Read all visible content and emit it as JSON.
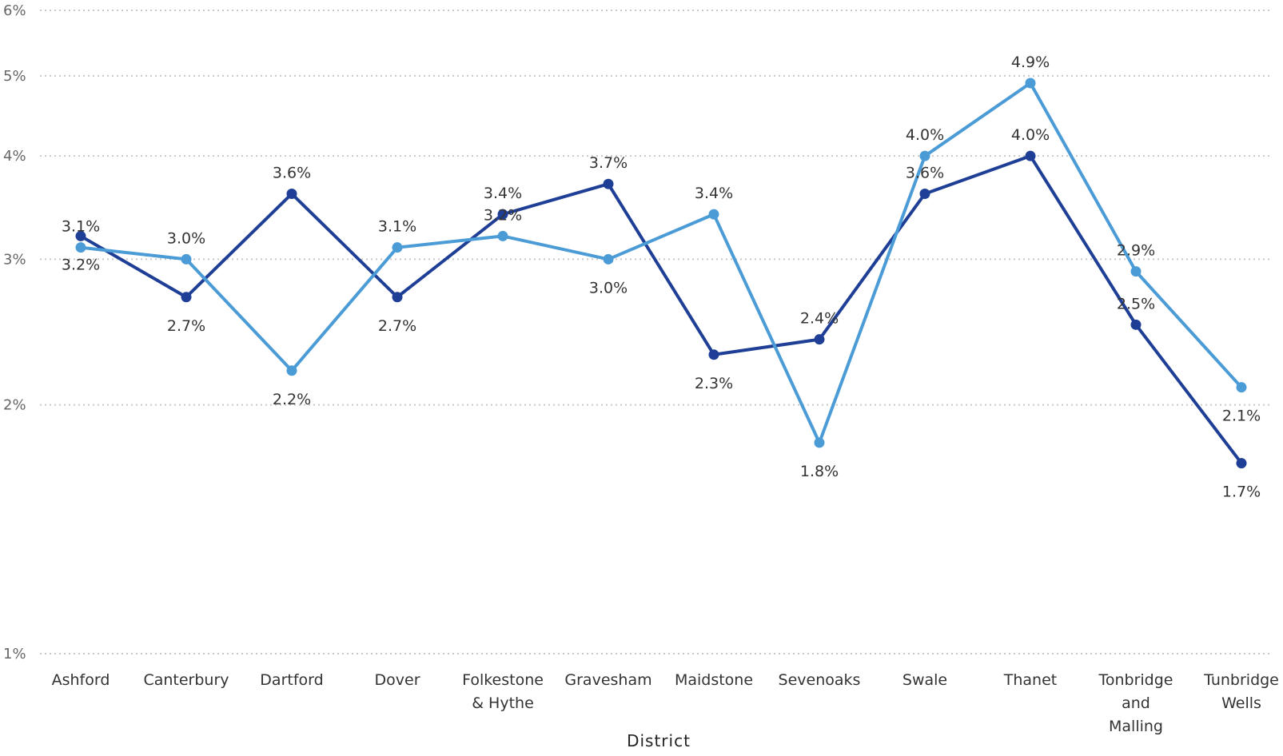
{
  "chart_data": {
    "type": "line",
    "xlabel": "District",
    "ylabel": "",
    "scale": "log",
    "ylim": [
      1,
      6
    ],
    "y_ticks": [
      {
        "value": 1,
        "label": "1%"
      },
      {
        "value": 2,
        "label": "2%"
      },
      {
        "value": 3,
        "label": "3%"
      },
      {
        "value": 4,
        "label": "4%"
      },
      {
        "value": 5,
        "label": "5%"
      },
      {
        "value": 6,
        "label": "6%"
      }
    ],
    "grid": true,
    "categories": [
      [
        "Ashford"
      ],
      [
        "Canterbury"
      ],
      [
        "Dartford"
      ],
      [
        "Dover"
      ],
      [
        "Folkestone",
        "& Hythe"
      ],
      [
        "Gravesham"
      ],
      [
        "Maidstone"
      ],
      [
        "Sevenoaks"
      ],
      [
        "Swale"
      ],
      [
        "Thanet"
      ],
      [
        "Tonbridge",
        "and",
        "Malling"
      ],
      [
        "Tunbridge",
        "Wells"
      ]
    ],
    "series": [
      {
        "color": "#1F3F96",
        "values": [
          3.2,
          2.7,
          3.6,
          2.7,
          3.4,
          3.7,
          2.3,
          2.4,
          3.6,
          4.0,
          2.5,
          1.7
        ],
        "labels": [
          "3.2%",
          "2.7%",
          "3.6%",
          "2.7%",
          "3.4%",
          "3.7%",
          "2.3%",
          "2.4%",
          "3.6%",
          "4.0%",
          "2.5%",
          "1.7%"
        ],
        "label_pos": [
          "below",
          "below",
          "above",
          "below",
          "above",
          "above",
          "below",
          "above",
          "above",
          "above",
          "above",
          "below"
        ]
      },
      {
        "color": "#4A9BD6",
        "values": [
          3.1,
          3.0,
          2.2,
          3.1,
          3.2,
          3.0,
          3.4,
          1.8,
          4.0,
          4.9,
          2.9,
          2.1
        ],
        "labels": [
          "3.1%",
          "3.0%",
          "2.2%",
          "3.1%",
          "3.2%",
          "3.0%",
          "3.4%",
          "1.8%",
          "4.0%",
          "4.9%",
          "2.9%",
          "2.1%"
        ],
        "label_pos": [
          "above",
          "above",
          "below",
          "above",
          "above",
          "below",
          "above",
          "below",
          "above",
          "above",
          "above",
          "below"
        ]
      }
    ]
  }
}
